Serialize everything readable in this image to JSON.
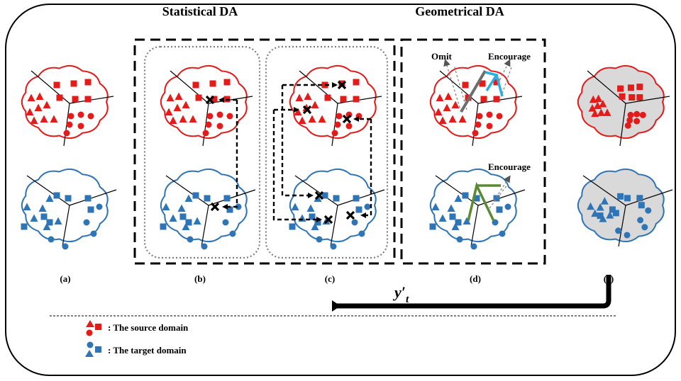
{
  "headings": {
    "statistical": "Statistical DA",
    "geometrical": "Geometrical DA"
  },
  "panel_labels": [
    "(a)",
    "(b)",
    "(c)",
    "(d)",
    "(e)"
  ],
  "annotations": {
    "omit": "Omit",
    "encourage_top": "Encourage",
    "encourage_bottom": "Encourage"
  },
  "feedback_label": "y′",
  "feedback_subscript": "t",
  "legend": {
    "source": ": The source domain",
    "target": ": The target domain"
  },
  "colors": {
    "source": "#e31b1b",
    "target": "#2f75b5",
    "shaded": "#d9d9d9",
    "cyan": "#2ab0e0",
    "green": "#5a8a32",
    "grey": "#7f7f7f"
  }
}
